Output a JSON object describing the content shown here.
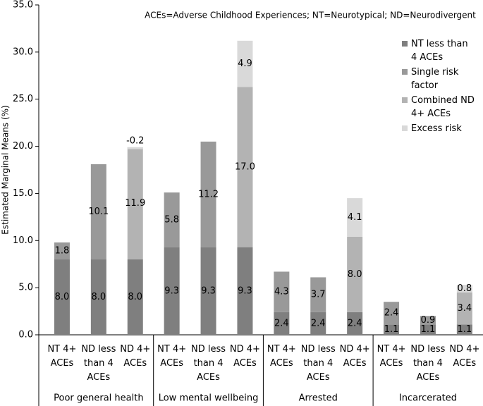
{
  "chart_data": {
    "type": "stacked_bar",
    "annotation": "ACEs=Adverse Childhood Experiences; NT=Neurotypical; ND=Neurodivergent",
    "ylabel": "Estimated Marginal Means (%)",
    "categories": [
      "NT 4+ ACEs",
      "ND less than 4 ACEs",
      "ND 4+ ACEs",
      "NT 4+ ACEs",
      "ND less than 4 ACEs",
      "ND 4+ ACEs",
      "NT 4+ ACEs",
      "ND less than 4 ACEs",
      "ND 4+ ACEs",
      "NT 4+ ACEs",
      "ND less than 4 ACEs",
      "ND 4+ ACEs"
    ],
    "groups": [
      "Poor general health",
      "Low mental wellbeing",
      "Arrested",
      "Incarcerated"
    ],
    "series": [
      {
        "name": "NT less than 4 ACEs",
        "color": "#7f7f7f",
        "values": [
          8.0,
          8.0,
          8.0,
          9.3,
          9.3,
          9.3,
          2.4,
          2.4,
          2.4,
          1.1,
          1.1,
          1.1
        ],
        "value_labels": [
          "8.0",
          "8.0",
          "8.0",
          "9.3",
          "9.3",
          "9.3",
          "2.4",
          "2.4",
          "2.4",
          "1.1",
          "1.1",
          "1.1"
        ]
      },
      {
        "name": "Single risk factor",
        "color": "#999999",
        "values": [
          1.8,
          10.1,
          null,
          5.8,
          11.2,
          null,
          4.3,
          3.7,
          null,
          2.4,
          0.9,
          null
        ],
        "value_labels": [
          "1.8",
          "10.1",
          null,
          "5.8",
          "11.2",
          null,
          "4.3",
          "3.7",
          null,
          "2.4",
          "0.9",
          null
        ]
      },
      {
        "name": "Combined ND 4+ ACEs",
        "color": "#b3b3b3",
        "values": [
          null,
          null,
          11.9,
          null,
          null,
          17.0,
          null,
          null,
          8.0,
          null,
          null,
          3.4
        ],
        "value_labels": [
          null,
          null,
          "11.9",
          null,
          null,
          "17.0",
          null,
          null,
          "8.0",
          null,
          null,
          "3.4"
        ]
      },
      {
        "name": "Excess risk",
        "color": "#d9d9d9",
        "values": [
          null,
          null,
          -0.2,
          null,
          null,
          4.9,
          null,
          null,
          4.1,
          null,
          null,
          0.8
        ],
        "value_labels": [
          null,
          null,
          "-0.2",
          null,
          null,
          "4.9",
          null,
          null,
          "4.1",
          null,
          null,
          "0.8"
        ]
      }
    ],
    "ylim": [
      0,
      35
    ],
    "yticks": [
      {
        "value": 0,
        "label": "0.0"
      },
      {
        "value": 5,
        "label": "5.0"
      },
      {
        "value": 10,
        "label": "10.0"
      },
      {
        "value": 15,
        "label": "15.0"
      },
      {
        "value": 20,
        "label": "20.0"
      },
      {
        "value": 25,
        "label": "25.0"
      },
      {
        "value": 30,
        "label": "30.0"
      },
      {
        "value": 35,
        "label": "35.0"
      }
    ],
    "legend": "right"
  }
}
